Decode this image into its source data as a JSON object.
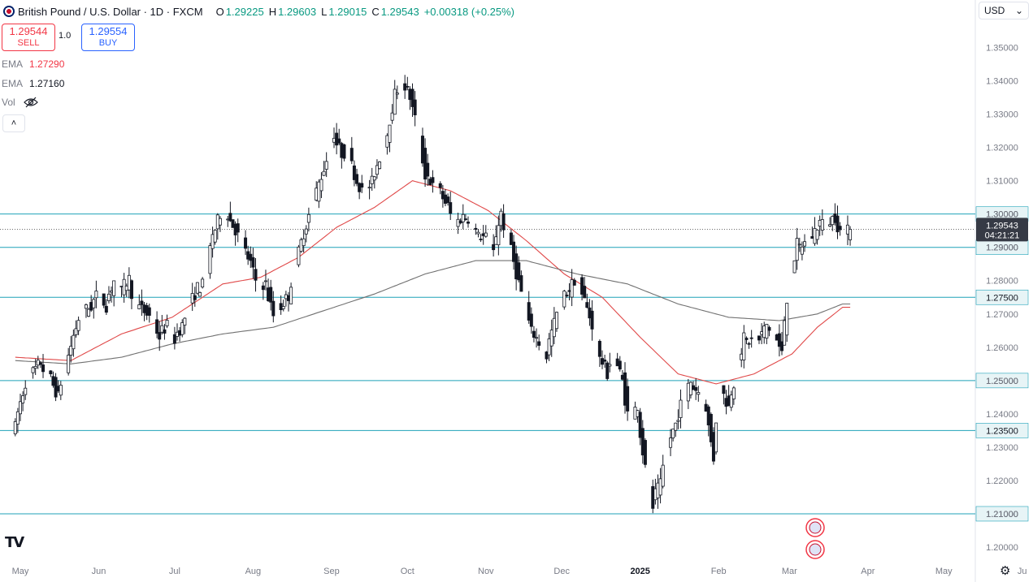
{
  "header": {
    "title": "British Pound / U.S. Dollar · 1D · FXCM",
    "open_label": "O",
    "open": "1.29225",
    "high_label": "H",
    "high": "1.29603",
    "low_label": "L",
    "low": "1.29015",
    "close_label": "C",
    "close": "1.29543",
    "change": "+0.00318 (+0.25%)"
  },
  "trade": {
    "sell_price": "1.29544",
    "sell_label": "SELL",
    "qty": "1.0",
    "buy_price": "1.29554",
    "buy_label": "BUY"
  },
  "indicators": [
    {
      "name": "EMA",
      "value": "1.27290",
      "color": "#f23645"
    },
    {
      "name": "EMA",
      "value": "1.27160",
      "color": "#131722"
    },
    {
      "name": "Vol",
      "value": ""
    }
  ],
  "collapse_label": "˄",
  "currency": "USD",
  "tv_logo": "TV",
  "colors": {
    "up": "#131722",
    "down": "#131722",
    "ema_fast": "#e04848",
    "ema_slow": "#707070",
    "hline": "#1fa2b8",
    "price_tag": "#363a45"
  },
  "chart_data": {
    "type": "candlestick",
    "title": "British Pound / U.S. Dollar · 1D · FXCM",
    "ylim": [
      1.2,
      1.355
    ],
    "y_ticks": [
      "1.35000",
      "1.34000",
      "1.33000",
      "1.32000",
      "1.31000",
      "1.30000",
      "1.29000",
      "1.28000",
      "1.27000",
      "1.26000",
      "1.25000",
      "1.24000",
      "1.23000",
      "1.22000",
      "1.21000",
      "1.20000"
    ],
    "x_ticks": [
      {
        "label": "May",
        "day": 0
      },
      {
        "label": "Jun",
        "day": 31
      },
      {
        "label": "Jul",
        "day": 61
      },
      {
        "label": "Aug",
        "day": 92
      },
      {
        "label": "Sep",
        "day": 123
      },
      {
        "label": "Oct",
        "day": 153
      },
      {
        "label": "Nov",
        "day": 184
      },
      {
        "label": "Dec",
        "day": 214
      },
      {
        "label": "2025",
        "day": 245,
        "bold": true
      },
      {
        "label": "Feb",
        "day": 276
      },
      {
        "label": "Mar",
        "day": 304
      },
      {
        "label": "Apr",
        "day": 335
      },
      {
        "label": "May",
        "day": 365
      },
      {
        "label": "Ju",
        "day": 396
      }
    ],
    "horizontal_levels": [
      "1.30000",
      "1.29000",
      "1.27500",
      "1.25000",
      "1.23500",
      "1.21000"
    ],
    "last_price": "1.29543",
    "countdown": "04:21:21",
    "current_price_value": 1.29543,
    "price_path": [
      [
        -2,
        1.236
      ],
      [
        2,
        1.248
      ],
      [
        5,
        1.252
      ],
      [
        8,
        1.255
      ],
      [
        12,
        1.251
      ],
      [
        15,
        1.246
      ],
      [
        18,
        1.253
      ],
      [
        21,
        1.262
      ],
      [
        24,
        1.27
      ],
      [
        28,
        1.272
      ],
      [
        31,
        1.276
      ],
      [
        34,
        1.273
      ],
      [
        37,
        1.279
      ],
      [
        40,
        1.277
      ],
      [
        43,
        1.28
      ],
      [
        46,
        1.273
      ],
      [
        49,
        1.271
      ],
      [
        52,
        1.269
      ],
      [
        55,
        1.264
      ],
      [
        58,
        1.266
      ],
      [
        61,
        1.263
      ],
      [
        64,
        1.266
      ],
      [
        67,
        1.272
      ],
      [
        70,
        1.277
      ],
      [
        73,
        1.279
      ],
      [
        76,
        1.292
      ],
      [
        79,
        1.299
      ],
      [
        82,
        1.3
      ],
      [
        85,
        1.296
      ],
      [
        88,
        1.291
      ],
      [
        91,
        1.286
      ],
      [
        94,
        1.279
      ],
      [
        97,
        1.279
      ],
      [
        100,
        1.271
      ],
      [
        103,
        1.272
      ],
      [
        106,
        1.275
      ],
      [
        109,
        1.284
      ],
      [
        112,
        1.293
      ],
      [
        115,
        1.301
      ],
      [
        118,
        1.308
      ],
      [
        121,
        1.315
      ],
      [
        124,
        1.323
      ],
      [
        127,
        1.319
      ],
      [
        130,
        1.318
      ],
      [
        133,
        1.311
      ],
      [
        136,
        1.306
      ],
      [
        139,
        1.309
      ],
      [
        142,
        1.316
      ],
      [
        145,
        1.323
      ],
      [
        148,
        1.334
      ],
      [
        151,
        1.341
      ],
      [
        154,
        1.336
      ],
      [
        157,
        1.327
      ],
      [
        160,
        1.314
      ],
      [
        163,
        1.309
      ],
      [
        166,
        1.307
      ],
      [
        169,
        1.303
      ],
      [
        172,
        1.297
      ],
      [
        175,
        1.299
      ],
      [
        178,
        1.299
      ],
      [
        181,
        1.294
      ],
      [
        184,
        1.293
      ],
      [
        187,
        1.289
      ],
      [
        190,
        1.299
      ],
      [
        193,
        1.294
      ],
      [
        196,
        1.284
      ],
      [
        199,
        1.275
      ],
      [
        202,
        1.266
      ],
      [
        205,
        1.262
      ],
      [
        208,
        1.258
      ],
      [
        211,
        1.266
      ],
      [
        214,
        1.274
      ],
      [
        217,
        1.277
      ],
      [
        220,
        1.281
      ],
      [
        223,
        1.275
      ],
      [
        226,
        1.268
      ],
      [
        229,
        1.258
      ],
      [
        232,
        1.253
      ],
      [
        235,
        1.258
      ],
      [
        238,
        1.251
      ],
      [
        241,
        1.238
      ],
      [
        244,
        1.242
      ],
      [
        247,
        1.226
      ],
      [
        250,
        1.214
      ],
      [
        253,
        1.218
      ],
      [
        256,
        1.23
      ],
      [
        259,
        1.236
      ],
      [
        262,
        1.244
      ],
      [
        265,
        1.249
      ],
      [
        268,
        1.247
      ],
      [
        271,
        1.243
      ],
      [
        274,
        1.229
      ],
      [
        277,
        1.248
      ],
      [
        280,
        1.243
      ],
      [
        283,
        1.251
      ],
      [
        286,
        1.261
      ],
      [
        289,
        1.262
      ],
      [
        292,
        1.262
      ],
      [
        295,
        1.266
      ],
      [
        298,
        1.265
      ],
      [
        301,
        1.259
      ],
      [
        304,
        1.278
      ],
      [
        307,
        1.289
      ],
      [
        310,
        1.291
      ],
      [
        313,
        1.293
      ],
      [
        316,
        1.297
      ],
      [
        319,
        1.297
      ],
      [
        322,
        1.299
      ],
      [
        325,
        1.294
      ],
      [
        328,
        1.295
      ]
    ],
    "series": [
      {
        "values_path": [
          [
            -2,
            1.257
          ],
          [
            20,
            1.256
          ],
          [
            40,
            1.264
          ],
          [
            60,
            1.269
          ],
          [
            80,
            1.279
          ],
          [
            95,
            1.281
          ],
          [
            110,
            1.287
          ],
          [
            125,
            1.296
          ],
          [
            140,
            1.302
          ],
          [
            155,
            1.31
          ],
          [
            170,
            1.307
          ],
          [
            185,
            1.301
          ],
          [
            200,
            1.292
          ],
          [
            215,
            1.282
          ],
          [
            230,
            1.275
          ],
          [
            245,
            1.263
          ],
          [
            260,
            1.252
          ],
          [
            275,
            1.249
          ],
          [
            290,
            1.252
          ],
          [
            305,
            1.258
          ],
          [
            315,
            1.266
          ],
          [
            325,
            1.272
          ]
        ]
      },
      {
        "values_path": [
          [
            -2,
            1.256
          ],
          [
            20,
            1.255
          ],
          [
            40,
            1.257
          ],
          [
            60,
            1.261
          ],
          [
            80,
            1.264
          ],
          [
            100,
            1.266
          ],
          [
            120,
            1.271
          ],
          [
            140,
            1.276
          ],
          [
            160,
            1.282
          ],
          [
            180,
            1.286
          ],
          [
            200,
            1.286
          ],
          [
            220,
            1.282
          ],
          [
            240,
            1.279
          ],
          [
            260,
            1.273
          ],
          [
            280,
            1.269
          ],
          [
            300,
            1.268
          ],
          [
            315,
            1.27
          ],
          [
            325,
            1.273
          ]
        ]
      }
    ]
  }
}
